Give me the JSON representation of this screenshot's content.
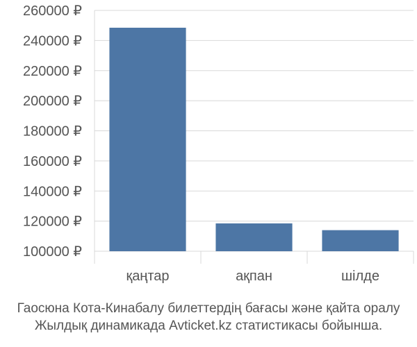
{
  "chart_data": {
    "type": "bar",
    "categories": [
      "қаңтар",
      "ақпан",
      "шілде"
    ],
    "values": [
      248500,
      118500,
      114000
    ],
    "ylim": [
      100000,
      260000
    ],
    "yticks": [
      100000,
      120000,
      140000,
      160000,
      180000,
      200000,
      220000,
      240000,
      260000
    ],
    "ytick_labels": [
      "100000 ₽",
      "120000 ₽",
      "140000 ₽",
      "160000 ₽",
      "180000 ₽",
      "200000 ₽",
      "220000 ₽",
      "240000 ₽",
      "260000 ₽"
    ],
    "grid": true,
    "bar_color": "#4d76a5",
    "grid_color": "#d8d8d8"
  },
  "caption": {
    "line1": "Гаосюна Кота-Кинабалу билеттердің бағасы және қайта оралу",
    "line2": "Жылдық динамикада Avticket.kz статистикасы бойынша."
  }
}
